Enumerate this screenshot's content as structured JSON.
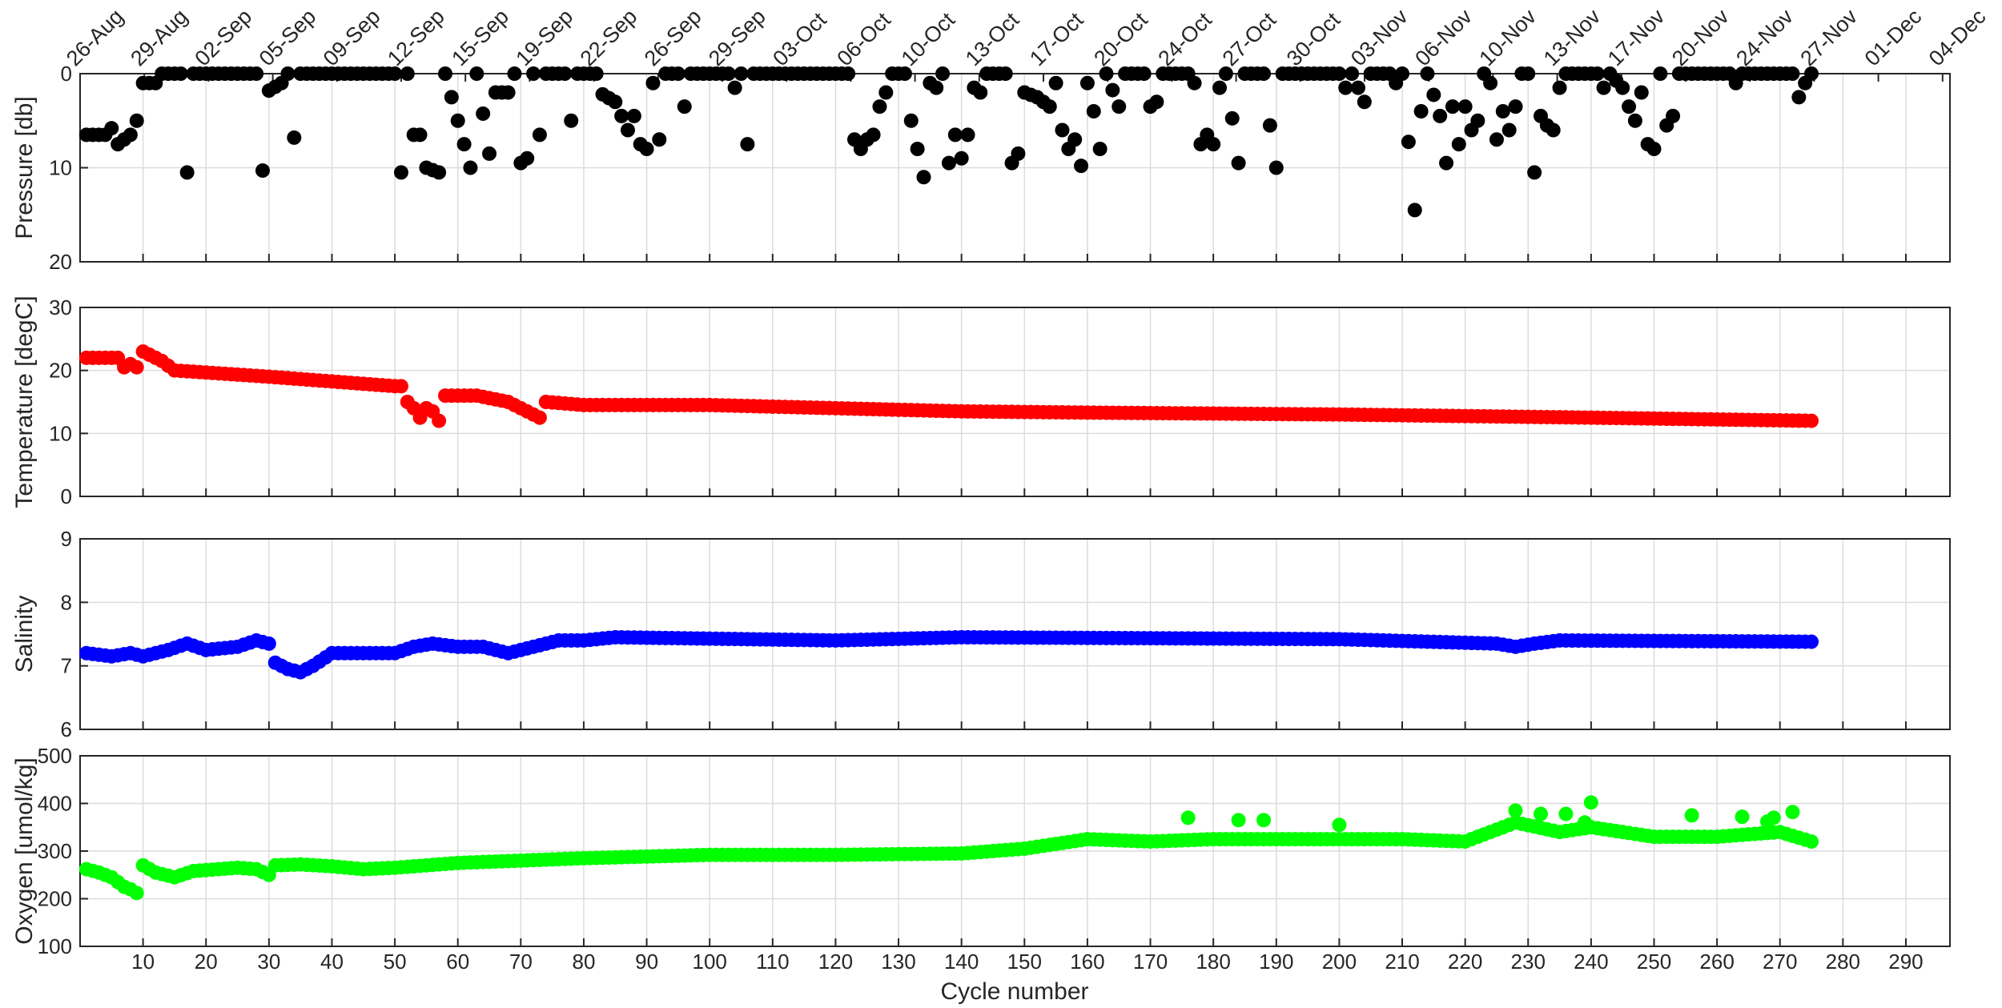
{
  "figure": {
    "xlabel": "Cycle number",
    "xlim": [
      0,
      297
    ],
    "xticks": [
      10,
      20,
      30,
      40,
      50,
      60,
      70,
      80,
      90,
      100,
      110,
      120,
      130,
      140,
      150,
      160,
      170,
      180,
      190,
      200,
      210,
      220,
      230,
      240,
      250,
      260,
      270,
      280,
      290
    ],
    "date_labels": [
      "26-Aug",
      "29-Aug",
      "02-Sep",
      "05-Sep",
      "09-Sep",
      "12-Sep",
      "15-Sep",
      "19-Sep",
      "22-Sep",
      "26-Sep",
      "29-Sep",
      "03-Oct",
      "06-Oct",
      "10-Oct",
      "13-Oct",
      "17-Oct",
      "20-Oct",
      "24-Oct",
      "27-Oct",
      "30-Oct",
      "03-Nov",
      "06-Nov",
      "10-Nov",
      "13-Nov",
      "17-Nov",
      "20-Nov",
      "24-Nov",
      "27-Nov",
      "01-Dec",
      "04-Dec"
    ],
    "grid": true
  },
  "chart_data": [
    {
      "type": "scatter",
      "ylabel": "Pressure [db]",
      "ylim": [
        0,
        20
      ],
      "yticks": [
        0,
        10,
        20
      ],
      "y_reversed": true,
      "color": "#000000",
      "anchors": [
        [
          1,
          6.5
        ],
        [
          4,
          6.5
        ],
        [
          5,
          5.8
        ],
        [
          6,
          7.5
        ],
        [
          8,
          6.5
        ],
        [
          9,
          5.0
        ],
        [
          10,
          1.0
        ],
        [
          12,
          1.0
        ],
        [
          13,
          0
        ],
        [
          16,
          0
        ],
        [
          17,
          10.5
        ],
        [
          18,
          0
        ],
        [
          28,
          0
        ],
        [
          29,
          10.3
        ],
        [
          30,
          1.8
        ],
        [
          32,
          1.0
        ],
        [
          33,
          0
        ],
        [
          34,
          6.8
        ],
        [
          35,
          0
        ],
        [
          50,
          0
        ],
        [
          51,
          10.5
        ],
        [
          52,
          0
        ],
        [
          53,
          6.5
        ],
        [
          54,
          6.5
        ],
        [
          55,
          10.0
        ],
        [
          57,
          10.5
        ],
        [
          58,
          0
        ],
        [
          62,
          10.0
        ],
        [
          63,
          0
        ],
        [
          65,
          8.5
        ],
        [
          66,
          2.0
        ],
        [
          68,
          2.0
        ],
        [
          69,
          0
        ],
        [
          70,
          9.5
        ],
        [
          71,
          9.0
        ],
        [
          72,
          0
        ],
        [
          73,
          6.5
        ],
        [
          74,
          0
        ],
        [
          77,
          0
        ],
        [
          78,
          5.0
        ],
        [
          79,
          0
        ],
        [
          82,
          0
        ],
        [
          83,
          2.2
        ],
        [
          85,
          3.0
        ],
        [
          86,
          4.5
        ],
        [
          87,
          6.0
        ],
        [
          88,
          4.5
        ],
        [
          89,
          7.5
        ],
        [
          90,
          8.0
        ],
        [
          91,
          1.0
        ],
        [
          92,
          7.0
        ],
        [
          93,
          0
        ],
        [
          95,
          0
        ],
        [
          96,
          3.5
        ],
        [
          97,
          0
        ],
        [
          103,
          0
        ],
        [
          104,
          1.5
        ],
        [
          105,
          0
        ],
        [
          106,
          7.5
        ],
        [
          107,
          0
        ],
        [
          122,
          0
        ],
        [
          123,
          7.0
        ],
        [
          124,
          8.0
        ],
        [
          125,
          7.0
        ],
        [
          126,
          6.5
        ],
        [
          127,
          3.5
        ],
        [
          128,
          2.0
        ],
        [
          129,
          0
        ],
        [
          131,
          0
        ],
        [
          132,
          5.0
        ],
        [
          133,
          8.0
        ],
        [
          134,
          11.0
        ],
        [
          135,
          1.0
        ],
        [
          136,
          1.5
        ],
        [
          137,
          0
        ],
        [
          138,
          9.5
        ],
        [
          139,
          6.5
        ],
        [
          140,
          9.0
        ],
        [
          141,
          6.5
        ],
        [
          142,
          1.5
        ],
        [
          143,
          2.0
        ],
        [
          144,
          0
        ],
        [
          147,
          0
        ],
        [
          148,
          9.5
        ],
        [
          149,
          8.5
        ],
        [
          150,
          2.0
        ],
        [
          152,
          2.5
        ],
        [
          154,
          3.5
        ],
        [
          155,
          1.0
        ],
        [
          156,
          6.0
        ],
        [
          157,
          8.0
        ],
        [
          158,
          7.0
        ],
        [
          159,
          9.8
        ],
        [
          160,
          1.0
        ],
        [
          161,
          4.0
        ],
        [
          162,
          8.0
        ],
        [
          163,
          0
        ],
        [
          165,
          3.5
        ],
        [
          166,
          0
        ],
        [
          169,
          0
        ],
        [
          170,
          3.5
        ],
        [
          171,
          3.0
        ],
        [
          172,
          0
        ],
        [
          176,
          0
        ],
        [
          177,
          1.0
        ],
        [
          178,
          7.5
        ],
        [
          179,
          6.5
        ],
        [
          180,
          7.5
        ],
        [
          181,
          1.5
        ],
        [
          182,
          0
        ],
        [
          184,
          9.5
        ],
        [
          185,
          0
        ],
        [
          188,
          0
        ],
        [
          189,
          5.5
        ],
        [
          190,
          10.0
        ],
        [
          191,
          0
        ],
        [
          200,
          0
        ],
        [
          201,
          1.5
        ],
        [
          202,
          0
        ],
        [
          204,
          3.0
        ],
        [
          205,
          0
        ],
        [
          208,
          0
        ],
        [
          209,
          1.0
        ],
        [
          210,
          0
        ],
        [
          212,
          14.5
        ],
        [
          213,
          4.0
        ],
        [
          214,
          0
        ],
        [
          216,
          4.5
        ],
        [
          217,
          9.5
        ],
        [
          218,
          3.5
        ],
        [
          219,
          7.5
        ],
        [
          220,
          3.5
        ],
        [
          221,
          6.0
        ],
        [
          222,
          5.0
        ],
        [
          223,
          0
        ],
        [
          224,
          1.0
        ],
        [
          225,
          7.0
        ],
        [
          226,
          4.0
        ],
        [
          227,
          6.0
        ],
        [
          228,
          3.5
        ],
        [
          229,
          0
        ],
        [
          230,
          0
        ],
        [
          231,
          10.5
        ],
        [
          232,
          4.5
        ],
        [
          233,
          5.5
        ],
        [
          234,
          6.0
        ],
        [
          235,
          1.5
        ],
        [
          236,
          0
        ],
        [
          241,
          0
        ],
        [
          242,
          1.5
        ],
        [
          243,
          0
        ],
        [
          245,
          1.5
        ],
        [
          246,
          3.5
        ],
        [
          247,
          5.0
        ],
        [
          248,
          2.0
        ],
        [
          249,
          7.5
        ],
        [
          250,
          8.0
        ],
        [
          251,
          0
        ],
        [
          252,
          5.5
        ],
        [
          253,
          4.5
        ],
        [
          254,
          0
        ],
        [
          262,
          0
        ],
        [
          263,
          1.0
        ],
        [
          264,
          0
        ],
        [
          272,
          0
        ],
        [
          273,
          2.5
        ],
        [
          274,
          1.0
        ],
        [
          275,
          0
        ]
      ]
    },
    {
      "type": "scatter",
      "ylabel": "Temperature [degC]",
      "ylim": [
        0,
        30
      ],
      "yticks": [
        0,
        10,
        20,
        30
      ],
      "color": "#ff0000",
      "anchors": [
        [
          1,
          22.0
        ],
        [
          6,
          22.0
        ],
        [
          7,
          20.5
        ],
        [
          8,
          21.0
        ],
        [
          9,
          20.5
        ],
        [
          10,
          23.0
        ],
        [
          12,
          22.0
        ],
        [
          13,
          21.5
        ],
        [
          15,
          20.0
        ],
        [
          30,
          19.0
        ],
        [
          50,
          17.5
        ],
        [
          51,
          17.5
        ],
        [
          52,
          15.0
        ],
        [
          53,
          14.0
        ],
        [
          54,
          12.5
        ],
        [
          55,
          14.0
        ],
        [
          56,
          13.5
        ],
        [
          57,
          12.0
        ],
        [
          58,
          16.0
        ],
        [
          63,
          16.0
        ],
        [
          68,
          15.0
        ],
        [
          72,
          13.0
        ],
        [
          73,
          12.5
        ],
        [
          74,
          15.0
        ],
        [
          80,
          14.5
        ],
        [
          100,
          14.5
        ],
        [
          120,
          14.0
        ],
        [
          140,
          13.5
        ],
        [
          160,
          13.3
        ],
        [
          200,
          13.0
        ],
        [
          240,
          12.5
        ],
        [
          275,
          12.0
        ]
      ]
    },
    {
      "type": "scatter",
      "ylabel": "Salinity",
      "ylim": [
        6,
        9
      ],
      "yticks": [
        6,
        7,
        8,
        9
      ],
      "color": "#0000ff",
      "anchors": [
        [
          1,
          7.2
        ],
        [
          5,
          7.15
        ],
        [
          8,
          7.2
        ],
        [
          10,
          7.15
        ],
        [
          14,
          7.25
        ],
        [
          17,
          7.35
        ],
        [
          20,
          7.25
        ],
        [
          25,
          7.3
        ],
        [
          28,
          7.4
        ],
        [
          30,
          7.35
        ],
        [
          31,
          7.05
        ],
        [
          33,
          6.95
        ],
        [
          35,
          6.9
        ],
        [
          37,
          7.0
        ],
        [
          40,
          7.2
        ],
        [
          50,
          7.2
        ],
        [
          53,
          7.3
        ],
        [
          56,
          7.35
        ],
        [
          60,
          7.3
        ],
        [
          64,
          7.3
        ],
        [
          68,
          7.2
        ],
        [
          72,
          7.3
        ],
        [
          76,
          7.4
        ],
        [
          80,
          7.4
        ],
        [
          85,
          7.45
        ],
        [
          120,
          7.4
        ],
        [
          140,
          7.45
        ],
        [
          200,
          7.42
        ],
        [
          225,
          7.35
        ],
        [
          228,
          7.3
        ],
        [
          231,
          7.35
        ],
        [
          235,
          7.4
        ],
        [
          275,
          7.38
        ]
      ]
    },
    {
      "type": "scatter",
      "ylabel": "Oxygen [umol/kg]",
      "ylim": [
        100,
        500
      ],
      "yticks": [
        100,
        200,
        300,
        400,
        500
      ],
      "color": "#00ff00",
      "anchors": [
        [
          1,
          262
        ],
        [
          3,
          255
        ],
        [
          5,
          245
        ],
        [
          7,
          225
        ],
        [
          8,
          220
        ],
        [
          9,
          212
        ],
        [
          10,
          270
        ],
        [
          12,
          255
        ],
        [
          15,
          245
        ],
        [
          18,
          258
        ],
        [
          25,
          265
        ],
        [
          28,
          262
        ],
        [
          30,
          250
        ],
        [
          31,
          270
        ],
        [
          35,
          272
        ],
        [
          40,
          268
        ],
        [
          45,
          262
        ],
        [
          50,
          265
        ],
        [
          60,
          275
        ],
        [
          80,
          285
        ],
        [
          100,
          292
        ],
        [
          120,
          292
        ],
        [
          140,
          295
        ],
        [
          150,
          305
        ],
        [
          160,
          325
        ],
        [
          170,
          320
        ],
        [
          180,
          325
        ],
        [
          190,
          325
        ],
        [
          200,
          325
        ],
        [
          210,
          325
        ],
        [
          220,
          320
        ],
        [
          228,
          360
        ],
        [
          235,
          340
        ],
        [
          240,
          350
        ],
        [
          250,
          330
        ],
        [
          260,
          330
        ],
        [
          270,
          340
        ],
        [
          275,
          320
        ]
      ],
      "highlights": [
        [
          176,
          370
        ],
        [
          184,
          365
        ],
        [
          188,
          365
        ],
        [
          200,
          355
        ],
        [
          228,
          385
        ],
        [
          232,
          378
        ],
        [
          236,
          378
        ],
        [
          239,
          360
        ],
        [
          240,
          402
        ],
        [
          256,
          375
        ],
        [
          264,
          372
        ],
        [
          268,
          362
        ],
        [
          269,
          370
        ],
        [
          272,
          382
        ]
      ]
    }
  ]
}
